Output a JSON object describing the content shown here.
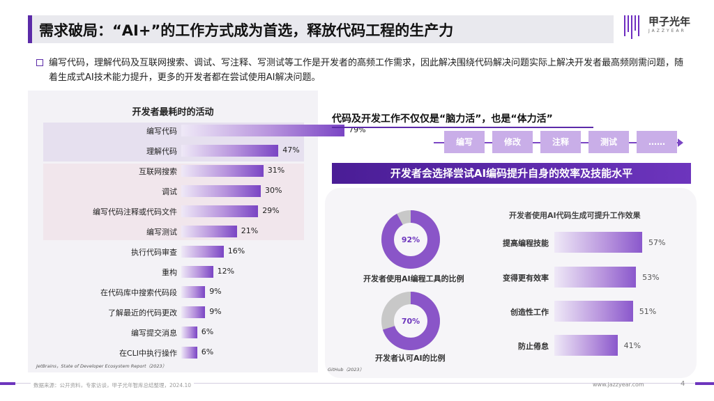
{
  "header": {
    "title": "需求破局：“AI+”的工作方式成为首选，释放代码工程的生产力",
    "logo_text": "甲子光年",
    "logo_sub": "JAZZYEAR"
  },
  "intro": "编写代码，理解代码及互联网搜索、调试、写注释、写测试等工作是开发者的高频工作需求，因此解决围绕代码解决问题实际上解决开发者最高频刚需问题，随着生成式AI技术能力提升，更多的开发者都在尝试使用AI解决问题。",
  "right": {
    "heading": "代码及开发工作不仅仅是“脑力活”，也是“体力活”",
    "flow_steps": [
      "编写",
      "修改",
      "注释",
      "测试",
      "……"
    ],
    "banner": "开发者会选择尝试AI编码提升自身的效率及技能水平",
    "source": "GitHub（2023）"
  },
  "chart_data": [
    {
      "type": "bar",
      "title": "开发者最耗时的活动",
      "categories": [
        "编写代码",
        "理解代码",
        "互联网搜索",
        "调试",
        "编写代码注释或代码文件",
        "编写测试",
        "执行代码审查",
        "重构",
        "在代码库中搜索代码段",
        "了解最近的代码更改",
        "编写提交消息",
        "在CLI中执行操作"
      ],
      "values": [
        79,
        47,
        31,
        30,
        29,
        21,
        16,
        12,
        9,
        9,
        6,
        6
      ],
      "value_labels": [
        "79%",
        "47%",
        "31%",
        "30%",
        "29%",
        "21%",
        "16%",
        "12%",
        "9%",
        "9%",
        "6%",
        "6%"
      ],
      "unit": "%",
      "orientation": "horizontal",
      "source": "JetBrains，State of Developer Ecosystem Report（2023）"
    },
    {
      "type": "pie",
      "label": "开发者使用AI编程工具的比例",
      "value": 92,
      "value_label": "92%"
    },
    {
      "type": "pie",
      "label": "开发者认可AI的比例",
      "value": 70,
      "value_label": "70%"
    },
    {
      "type": "bar",
      "title": "开发者使用AI代码生成可提升工作效果",
      "categories": [
        "提高编程技能",
        "变得更有效率",
        "创造性工作",
        "防止倦怠"
      ],
      "values": [
        57,
        53,
        51,
        41
      ],
      "value_labels": [
        "57%",
        "53%",
        "51%",
        "41%"
      ],
      "unit": "%",
      "orientation": "horizontal"
    }
  ],
  "footer": {
    "source": "数据来源：公开资料，专家访谈，甲子光年智库总结整理，2024.10",
    "url": "www.jazzyear.com",
    "page": "4"
  },
  "colors": {
    "accent": "#5b2aa8",
    "bar_dark": "#7a45c4",
    "ring_purple": "#8a55c8",
    "ring_gray": "#c8c8c8"
  }
}
